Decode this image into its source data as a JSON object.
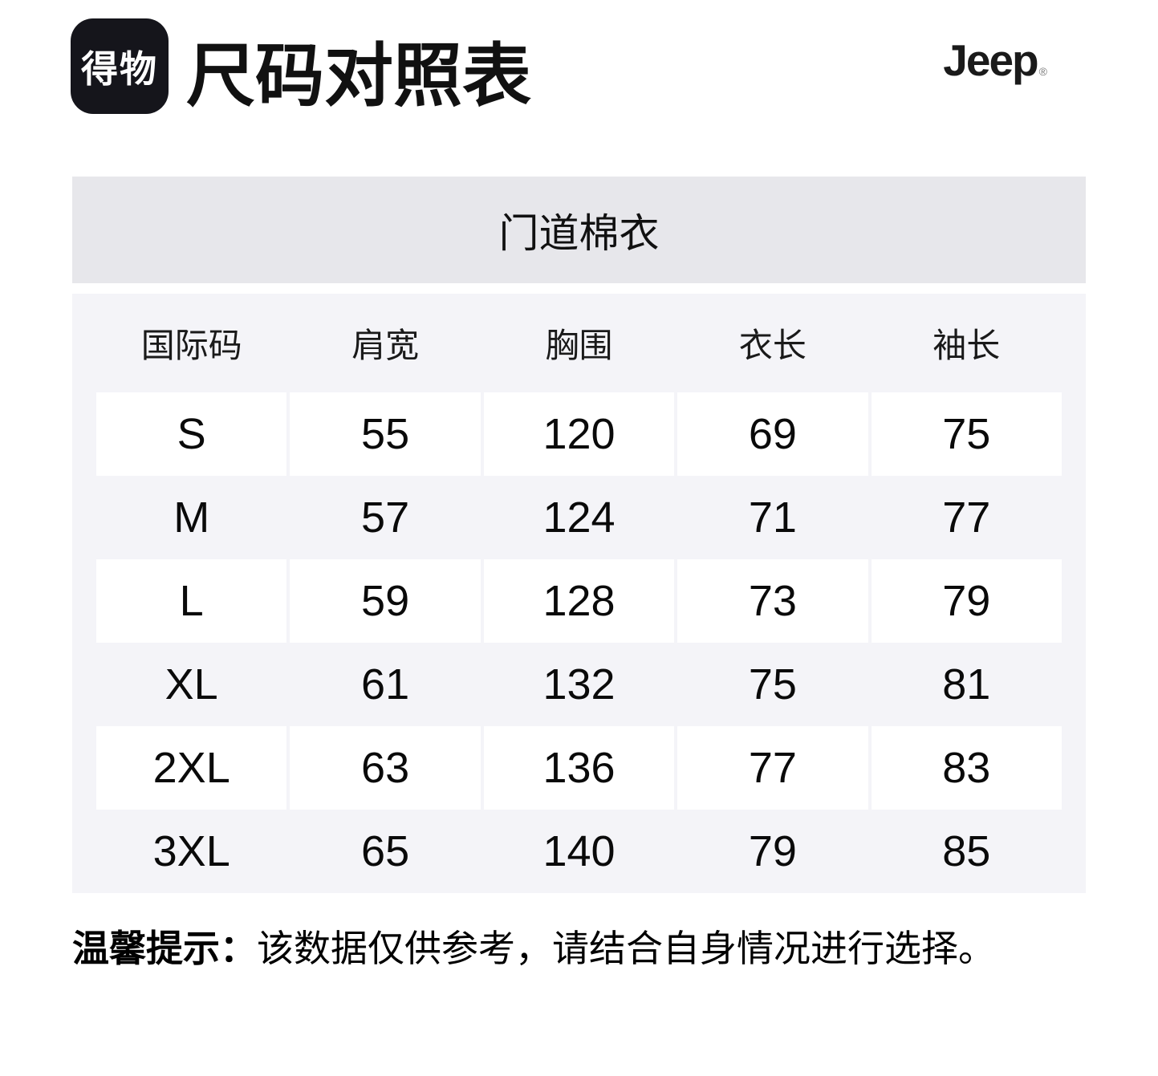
{
  "header": {
    "logo_text": "得物",
    "title": "尺码对照表",
    "brand": "Jeep",
    "reg_mark": "®"
  },
  "banner": {
    "product_name": "门道棉衣"
  },
  "size_table": {
    "columns": [
      "国际码",
      "肩宽",
      "胸围",
      "衣长",
      "袖长"
    ],
    "rows": [
      {
        "size": "S",
        "values": [
          "55",
          "120",
          "69",
          "75"
        ]
      },
      {
        "size": "M",
        "values": [
          "57",
          "124",
          "71",
          "77"
        ]
      },
      {
        "size": "L",
        "values": [
          "59",
          "128",
          "73",
          "79"
        ]
      },
      {
        "size": "XL",
        "values": [
          "61",
          "132",
          "75",
          "81"
        ]
      },
      {
        "size": "2XL",
        "values": [
          "63",
          "136",
          "77",
          "83"
        ]
      },
      {
        "size": "3XL",
        "values": [
          "65",
          "140",
          "79",
          "85"
        ]
      }
    ]
  },
  "footnote": {
    "label": "温馨提示：",
    "text": "该数据仅供参考，请结合自身情况进行选择。"
  },
  "colors": {
    "banner_bg": "#e7e7eb",
    "table_bg": "#f4f4f8",
    "cell_bg": "#ffffff",
    "logo_bg": "#15151b",
    "text": "#111111"
  }
}
